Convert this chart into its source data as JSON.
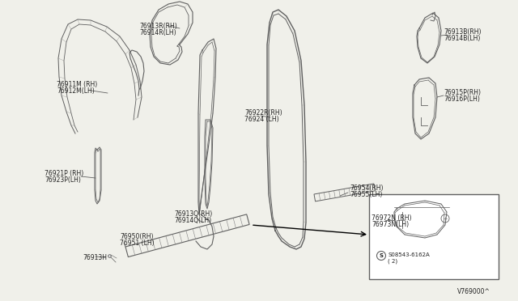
{
  "bg_color": "#f0f0ea",
  "diagram_id": "V769000^",
  "labels": {
    "76911M_RH": "76911M (RH)",
    "76912M_LH": "76912M(LH)",
    "76913R_RH": "76913R(RH)",
    "76914R_LH": "76914R(LH)",
    "76921P_RH": "76921P (RH)",
    "76923P_LH": "76923P(LH)",
    "76913H": "76913H",
    "76913Q_RH": "76913Q(RH)",
    "76914Q_LH": "76914Q(LH)",
    "76950_RH": "76950(RH)",
    "76951_LH": "76951 (LH)",
    "76922R_RH": "76922R(RH)",
    "76924_LH": "76924 (LH)",
    "76954_RH": "76954(RH)",
    "76955_LH": "76955(LH)",
    "76913B_RH": "76913B(RH)",
    "76914B_LH": "76914B(LH)",
    "76915P_RH": "76915P(RH)",
    "76916P_LH": "76916P(LH)",
    "76972N_RH": "76972N (RH)",
    "76973N_LH": "76973N(LH)",
    "bolt": "S08543-6162A",
    "bolt2": "( 2)"
  },
  "line_color": "#606060",
  "text_color": "#222222",
  "hatch_color": "#808080"
}
